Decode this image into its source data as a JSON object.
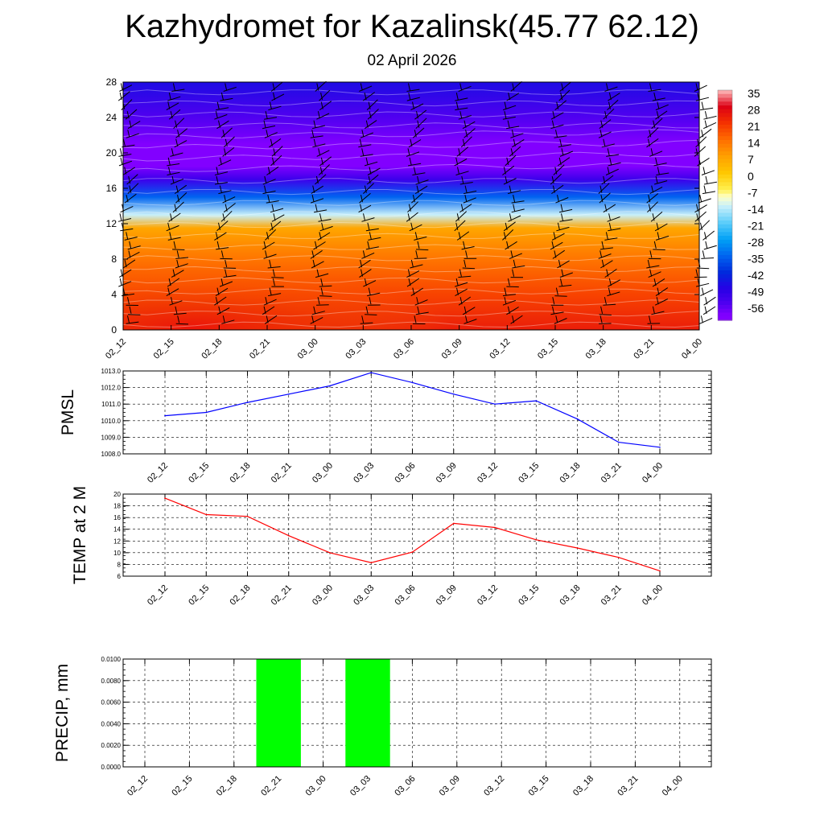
{
  "title": "Kazhydromet for Kazalinsk(45.77 62.12)",
  "subtitle": "02 April 2026",
  "chart_data": [
    {
      "type": "heatmap",
      "name": "temperature-cross-section",
      "x": [
        "02_12",
        "02_15",
        "02_18",
        "02_21",
        "03_00",
        "03_03",
        "03_06",
        "03_09",
        "03_12",
        "03_15",
        "03_18",
        "03_21",
        "04_00"
      ],
      "y_ticks": [
        "0",
        "4",
        "8",
        "12",
        "16",
        "20",
        "24",
        "28"
      ],
      "ylim": [
        0,
        28
      ],
      "colorbar_labels": [
        "35",
        "28",
        "21",
        "14",
        "7",
        "0",
        "-7",
        "-14",
        "-21",
        "-28",
        "-35",
        "-42",
        "-49",
        "-56"
      ],
      "levels_temp": {
        "heights": [
          0,
          4,
          8,
          11.5,
          13,
          15,
          17,
          18.5,
          21,
          24,
          28
        ],
        "temps": [
          24,
          19,
          13,
          6,
          -14,
          -35,
          -52,
          -60,
          -61,
          -55,
          -47
        ]
      },
      "wind_barbs": true
    },
    {
      "type": "line",
      "name": "pmsl",
      "ylabel": "PMSL",
      "x": [
        "02_12",
        "02_15",
        "02_18",
        "02_21",
        "03_00",
        "03_03",
        "03_06",
        "03_09",
        "03_12",
        "03_15",
        "03_18",
        "03_21",
        "04_00"
      ],
      "values": [
        1010.3,
        1010.5,
        1011.1,
        1011.6,
        1012.1,
        1012.9,
        1012.3,
        1011.6,
        1011.0,
        1011.2,
        1010.1,
        1008.7,
        1008.4
      ],
      "y_ticks": [
        "1008.0",
        "1009.0",
        "1010.0",
        "1011.0",
        "1012.0",
        "1013.0"
      ],
      "ylim": [
        1008.0,
        1013.0
      ],
      "color": "#0000ff"
    },
    {
      "type": "line",
      "name": "temp-2m",
      "ylabel": "TEMP at 2 M",
      "x": [
        "02_12",
        "02_15",
        "02_18",
        "02_21",
        "03_00",
        "03_03",
        "03_06",
        "03_09",
        "03_12",
        "03_15",
        "03_18",
        "03_21",
        "04_00"
      ],
      "values": [
        19.3,
        16.5,
        16.2,
        12.9,
        10.0,
        8.3,
        10.1,
        15.0,
        14.3,
        12.2,
        10.8,
        9.2,
        6.9
      ],
      "y_ticks": [
        "6",
        "8",
        "10",
        "12",
        "14",
        "16",
        "18",
        "20"
      ],
      "ylim": [
        6,
        20
      ],
      "color": "#ff0000"
    },
    {
      "type": "bar",
      "name": "precip",
      "ylabel": "PRECIP, mm",
      "x": [
        "02_12",
        "02_15",
        "02_18",
        "02_21",
        "03_00",
        "03_03",
        "03_06",
        "03_09",
        "03_12",
        "03_15",
        "03_18",
        "03_21",
        "04_00"
      ],
      "values": [
        0,
        0,
        0,
        0.01,
        0,
        0.01,
        0,
        0,
        0,
        0,
        0,
        0,
        0
      ],
      "y_ticks": [
        "0.0000",
        "0.0020",
        "0.0040",
        "0.0060",
        "0.0080",
        "0.0100"
      ],
      "ylim": [
        0,
        0.01
      ],
      "color": "#00ff00"
    }
  ]
}
